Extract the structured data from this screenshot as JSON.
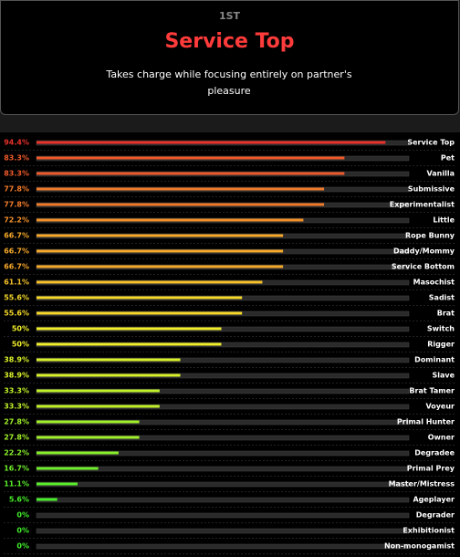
{
  "header": {
    "rank": "1ST",
    "title": "Service Top",
    "description": "Takes charge while focusing entirely on partner's pleasure"
  },
  "chart_data": {
    "type": "bar",
    "orientation": "horizontal",
    "categories": [
      "Service Top",
      "Pet",
      "Vanilla",
      "Submissive",
      "Experimentalist",
      "Little",
      "Rope Bunny",
      "Daddy/Mommy",
      "Service Bottom",
      "Masochist",
      "Sadist",
      "Brat",
      "Switch",
      "Rigger",
      "Dominant",
      "Slave",
      "Brat Tamer",
      "Voyeur",
      "Primal Hunter",
      "Owner",
      "Degradee",
      "Primal Prey",
      "Master/Mistress",
      "Ageplayer",
      "Degrader",
      "Exhibitionist",
      "Non-monogamist"
    ],
    "values": [
      94.4,
      83.3,
      83.3,
      77.8,
      77.8,
      72.2,
      66.7,
      66.7,
      66.7,
      61.1,
      55.6,
      55.6,
      50,
      50,
      38.9,
      38.9,
      33.3,
      33.3,
      27.8,
      27.8,
      22.2,
      16.7,
      11.1,
      5.6,
      0,
      0,
      0
    ],
    "value_labels": [
      "94.4%",
      "83.3%",
      "83.3%",
      "77.8%",
      "77.8%",
      "72.2%",
      "66.7%",
      "66.7%",
      "66.7%",
      "61.1%",
      "55.6%",
      "55.6%",
      "50%",
      "50%",
      "38.9%",
      "38.9%",
      "33.3%",
      "33.3%",
      "27.8%",
      "27.8%",
      "22.2%",
      "16.7%",
      "11.1%",
      "5.6%",
      "0%",
      "0%",
      "0%"
    ],
    "colors": [
      "#e8312a",
      "#ee5a2a",
      "#ee5a2a",
      "#f07a2a",
      "#f07a2a",
      "#f2902a",
      "#f5a82a",
      "#f5a82a",
      "#f5a82a",
      "#f5c02a",
      "#f5d82a",
      "#f5d82a",
      "#f0ee2a",
      "#f0ee2a",
      "#d8f02a",
      "#d8f02a",
      "#c0f02a",
      "#c0f02a",
      "#a0f02a",
      "#a0f02a",
      "#88ee2a",
      "#70ee2a",
      "#5aee2a",
      "#48ee2a",
      "#40ee2a",
      "#40ee2a",
      "#40ee2a"
    ],
    "xlim": [
      0,
      100
    ]
  }
}
